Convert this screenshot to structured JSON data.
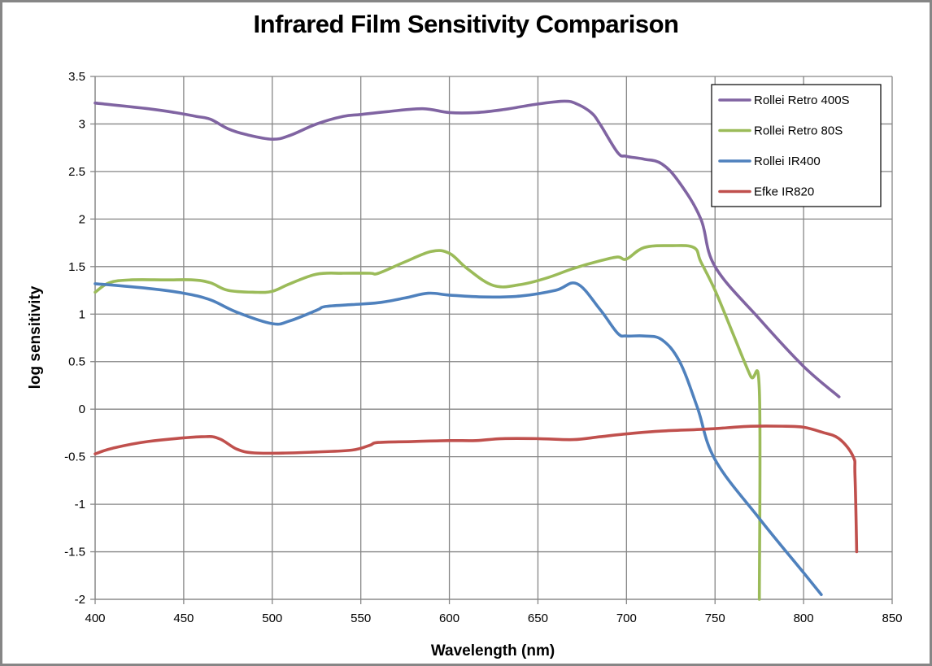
{
  "chart_data": {
    "type": "line",
    "title": "Infrared Film Sensitivity Comparison",
    "xlabel": "Wavelength (nm)",
    "ylabel": "log sensitivity",
    "xlim": [
      400,
      850
    ],
    "ylim": [
      -2,
      3.5
    ],
    "xticks": [
      "400",
      "450",
      "500",
      "550",
      "600",
      "650",
      "700",
      "750",
      "800",
      "850"
    ],
    "yticks": [
      "3.5",
      "3",
      "2.5",
      "2",
      "1.5",
      "1",
      "0.5",
      "0",
      "-0.5",
      "-1",
      "-1.5",
      "-2"
    ],
    "grid": true,
    "legend_position": "top-right",
    "series": [
      {
        "name": "Rollei Retro 400S",
        "color": "#8064a2",
        "x": [
          400,
          430,
          445,
          457,
          465,
          475,
          485,
          500,
          510,
          525,
          540,
          550,
          565,
          585,
          600,
          615,
          630,
          650,
          665,
          672,
          680,
          685,
          695,
          700,
          710,
          720,
          730,
          742,
          750,
          775,
          800,
          820
        ],
        "y": [
          3.22,
          3.16,
          3.12,
          3.08,
          3.05,
          2.95,
          2.89,
          2.84,
          2.88,
          3.0,
          3.08,
          3.1,
          3.13,
          3.16,
          3.12,
          3.12,
          3.15,
          3.21,
          3.24,
          3.21,
          3.12,
          3.0,
          2.7,
          2.66,
          2.63,
          2.58,
          2.38,
          2.0,
          1.5,
          0.95,
          0.45,
          0.13
        ]
      },
      {
        "name": "Rollei Retro 80S",
        "color": "#9bbb59",
        "x": [
          400,
          408,
          420,
          440,
          455,
          465,
          475,
          490,
          500,
          510,
          525,
          540,
          555,
          560,
          575,
          590,
          600,
          610,
          625,
          640,
          655,
          670,
          685,
          695,
          700,
          710,
          725,
          738,
          742,
          750,
          760,
          770,
          775,
          775
        ],
        "y": [
          1.23,
          1.33,
          1.36,
          1.36,
          1.36,
          1.33,
          1.25,
          1.23,
          1.24,
          1.32,
          1.42,
          1.43,
          1.43,
          1.43,
          1.55,
          1.66,
          1.64,
          1.48,
          1.3,
          1.31,
          1.38,
          1.48,
          1.56,
          1.6,
          1.58,
          1.7,
          1.72,
          1.7,
          1.55,
          1.25,
          0.8,
          0.35,
          0.2,
          -2.0
        ]
      },
      {
        "name": "Rollei IR400",
        "color": "#4f81bd",
        "x": [
          400,
          430,
          450,
          465,
          480,
          500,
          510,
          525,
          530,
          545,
          560,
          575,
          588,
          600,
          620,
          640,
          660,
          672,
          685,
          695,
          700,
          710,
          720,
          730,
          740,
          750,
          775,
          800,
          810
        ],
        "y": [
          1.32,
          1.27,
          1.22,
          1.15,
          1.02,
          0.9,
          0.93,
          1.04,
          1.08,
          1.1,
          1.12,
          1.17,
          1.22,
          1.2,
          1.18,
          1.19,
          1.25,
          1.32,
          1.05,
          0.8,
          0.77,
          0.77,
          0.73,
          0.5,
          0.02,
          -0.53,
          -1.15,
          -1.72,
          -1.95
        ]
      },
      {
        "name": "Efke IR820",
        "color": "#c0504d",
        "x": [
          400,
          410,
          430,
          460,
          470,
          480,
          490,
          510,
          525,
          545,
          555,
          560,
          580,
          600,
          615,
          630,
          650,
          670,
          685,
          700,
          720,
          745,
          770,
          790,
          800,
          810,
          820,
          828,
          829,
          830
        ],
        "y": [
          -0.47,
          -0.41,
          -0.34,
          -0.29,
          -0.31,
          -0.42,
          -0.46,
          -0.46,
          -0.45,
          -0.43,
          -0.38,
          -0.35,
          -0.34,
          -0.33,
          -0.33,
          -0.31,
          -0.31,
          -0.32,
          -0.29,
          -0.26,
          -0.23,
          -0.21,
          -0.18,
          -0.18,
          -0.19,
          -0.24,
          -0.31,
          -0.5,
          -0.7,
          -1.5
        ]
      }
    ]
  }
}
